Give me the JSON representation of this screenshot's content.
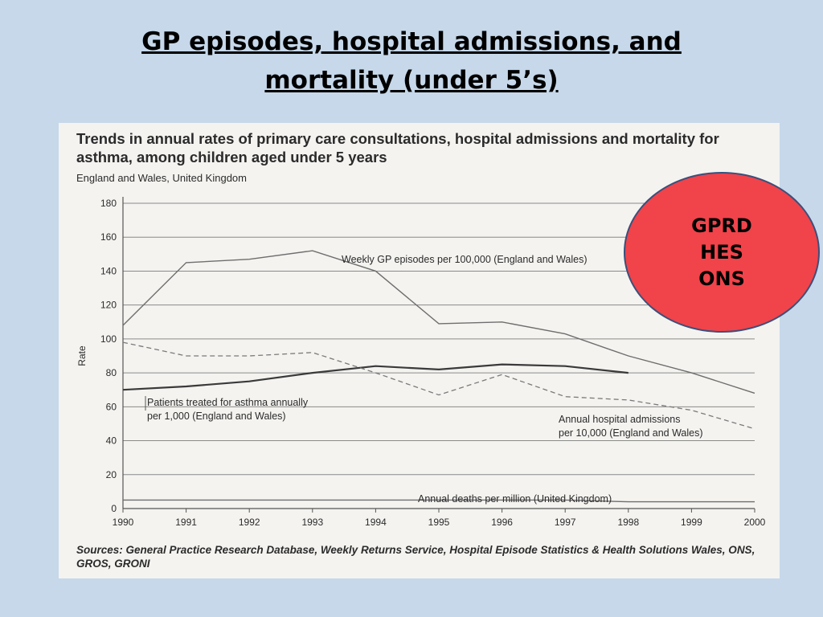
{
  "slide": {
    "title_line1": "GP episodes, hospital admissions, and",
    "title_line2": "mortality (under 5’s)",
    "background_color": "#c6d8ea"
  },
  "badge": {
    "lines": [
      "GPRD",
      "HES",
      "ONS"
    ],
    "fill_color": "#f1434a",
    "border_color": "#3b4f7a"
  },
  "chart_data": {
    "type": "line",
    "title": "Trends in annual rates of primary care consultations, hospital admissions and mortality for asthma, among children aged under 5 years",
    "subtitle": "England and Wales, United Kingdom",
    "xlabel": "",
    "ylabel": "Rate",
    "xlim": [
      1990,
      2000
    ],
    "ylim": [
      0,
      180
    ],
    "x_ticks": [
      "1990",
      "1991",
      "1992",
      "1993",
      "1994",
      "1995",
      "1996",
      "1997",
      "1998",
      "1999",
      "2000"
    ],
    "y_ticks": [
      "0",
      "20",
      "40",
      "60",
      "80",
      "100",
      "120",
      "140",
      "160",
      "180"
    ],
    "grid": "horizontal",
    "series": [
      {
        "name": "Weekly GP episodes per 100,000 (England and Wales)",
        "style": "solid-thin",
        "x": [
          1990,
          1991,
          1992,
          1993,
          1994,
          1995,
          1996,
          1997,
          1998,
          1999,
          2000
        ],
        "y": [
          108,
          145,
          147,
          152,
          140,
          109,
          110,
          103,
          90,
          80,
          68
        ]
      },
      {
        "name": "Patients treated for asthma annually per 1,000 (England and Wales)",
        "style": "solid-thick",
        "x": [
          1990,
          1991,
          1992,
          1993,
          1994,
          1995,
          1996,
          1997,
          1998
        ],
        "y": [
          70,
          72,
          75,
          80,
          84,
          82,
          85,
          84,
          80
        ]
      },
      {
        "name": "Annual hospital admissions per 10,000 (England and Wales)",
        "style": "dashed",
        "x": [
          1990,
          1991,
          1992,
          1993,
          1994,
          1995,
          1996,
          1997,
          1998,
          1999,
          2000
        ],
        "y": [
          98,
          90,
          90,
          92,
          80,
          67,
          79,
          66,
          64,
          58,
          47
        ]
      },
      {
        "name": "Annual deaths per million (United Kingdom)",
        "style": "solid-thin",
        "x": [
          1990,
          1991,
          1992,
          1993,
          1994,
          1995,
          1996,
          1997,
          1998,
          1999,
          2000
        ],
        "y": [
          5,
          5,
          5,
          5,
          5,
          5,
          5,
          5,
          4,
          4,
          4
        ]
      }
    ],
    "annotations": [
      "Weekly GP episodes per 100,000 (England and Wales)",
      "Patients treated for asthma annually",
      "per 1,000 (England and Wales)",
      "Annual hospital admissions",
      "per 10,000 (England and Wales)",
      "Annual deaths per million (United Kingdom)"
    ],
    "sources": "Sources: General Practice Research Database, Weekly Returns Service, Hospital Episode Statistics & Health Solutions Wales, ONS, GROS, GRONI"
  }
}
